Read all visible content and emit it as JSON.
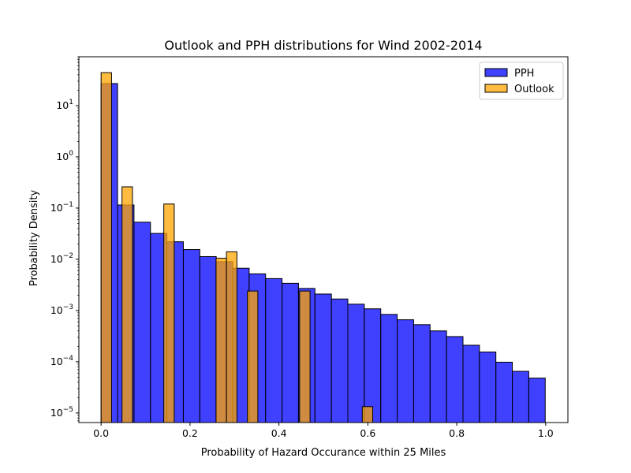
{
  "chart_data": {
    "type": "bar",
    "title": "Outlook and PPH distributions for Wind 2002-2014",
    "xlabel": "Probability of Hazard Occurance within 25 Miles",
    "ylabel": "Probability Density",
    "xlim": [
      -0.05,
      1.05
    ],
    "ylim": [
      6.5e-06,
      90
    ],
    "yscale": "log",
    "grid": false,
    "legend_position": "top-right",
    "x_ticks": [
      0.0,
      0.2,
      0.4,
      0.6,
      0.8,
      1.0
    ],
    "x_tick_labels": [
      "0.0",
      "0.2",
      "0.4",
      "0.6",
      "0.8",
      "1.0"
    ],
    "y_ticks": [
      1e-05,
      0.0001,
      0.001,
      0.01,
      0.1,
      1,
      10
    ],
    "series": [
      {
        "name": "PPH",
        "color": "#0000ff",
        "bin_width": 0.037,
        "bin_start": 0.0,
        "values": [
          27,
          0.115,
          0.053,
          0.032,
          0.022,
          0.0155,
          0.0113,
          0.009,
          0.0067,
          0.0052,
          0.0042,
          0.0034,
          0.0027,
          0.0021,
          0.00168,
          0.00133,
          0.00108,
          0.00084,
          0.00066,
          0.00053,
          0.0004,
          0.00031,
          0.00021,
          0.000155,
          9.8e-05,
          6.5e-05,
          4.8e-05
        ]
      },
      {
        "name": "Outlook",
        "color": "#ffa500",
        "bins": [
          {
            "x0": 0.0,
            "x1": 0.0235,
            "value": 44
          },
          {
            "x0": 0.047,
            "x1": 0.0705,
            "value": 0.26
          },
          {
            "x0": 0.141,
            "x1": 0.1645,
            "value": 0.12
          },
          {
            "x0": 0.2585,
            "x1": 0.282,
            "value": 0.0105
          },
          {
            "x0": 0.282,
            "x1": 0.3055,
            "value": 0.014
          },
          {
            "x0": 0.329,
            "x1": 0.3525,
            "value": 0.0024
          },
          {
            "x0": 0.4465,
            "x1": 0.47,
            "value": 0.0024
          },
          {
            "x0": 0.5875,
            "x1": 0.611,
            "value": 1.33e-05
          }
        ]
      }
    ]
  }
}
